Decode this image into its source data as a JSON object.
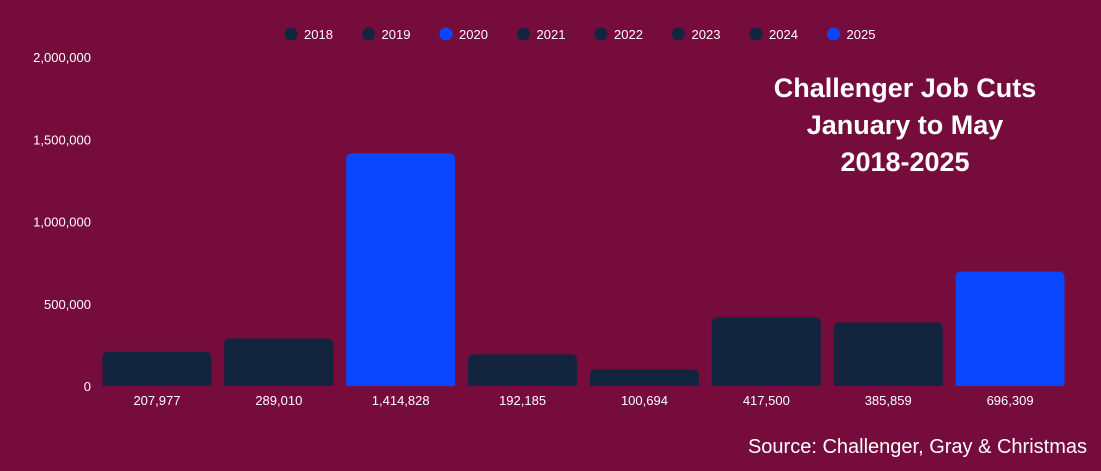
{
  "chart_data": {
    "type": "bar",
    "title_lines": [
      "Challenger Job Cuts",
      "January to May",
      "2018-2025"
    ],
    "source": "Source: Challenger, Gray & Christmas",
    "legend": {
      "placement": "top-center",
      "entries": [
        {
          "label": "2018",
          "color": "#13243f"
        },
        {
          "label": "2019",
          "color": "#13243f"
        },
        {
          "label": "2020",
          "color": "#0a46ff"
        },
        {
          "label": "2021",
          "color": "#13243f"
        },
        {
          "label": "2022",
          "color": "#13243f"
        },
        {
          "label": "2023",
          "color": "#13243f"
        },
        {
          "label": "2024",
          "color": "#13243f"
        },
        {
          "label": "2025",
          "color": "#0a46ff"
        }
      ]
    },
    "categories": [
      "2018",
      "2019",
      "2020",
      "2021",
      "2022",
      "2023",
      "2024",
      "2025"
    ],
    "values": [
      207977,
      289010,
      1414828,
      192185,
      100694,
      417500,
      385859,
      696309
    ],
    "value_labels": [
      "207,977",
      "289,010",
      "1,414,828",
      "192,185",
      "100,694",
      "417,500",
      "385,859",
      "696,309"
    ],
    "bar_colors": [
      "#13243f",
      "#13243f",
      "#0a46ff",
      "#13243f",
      "#13243f",
      "#13243f",
      "#13243f",
      "#0a46ff"
    ],
    "ylim": [
      0,
      2000000
    ],
    "y_ticks": [
      {
        "value": 0,
        "label": "0"
      },
      {
        "value": 500000,
        "label": "500,000"
      },
      {
        "value": 1000000,
        "label": "1,000,000"
      },
      {
        "value": 1500000,
        "label": "1,500,000"
      },
      {
        "value": 2000000,
        "label": "2,000,000"
      }
    ],
    "grid": false,
    "background": "#750c3b"
  }
}
